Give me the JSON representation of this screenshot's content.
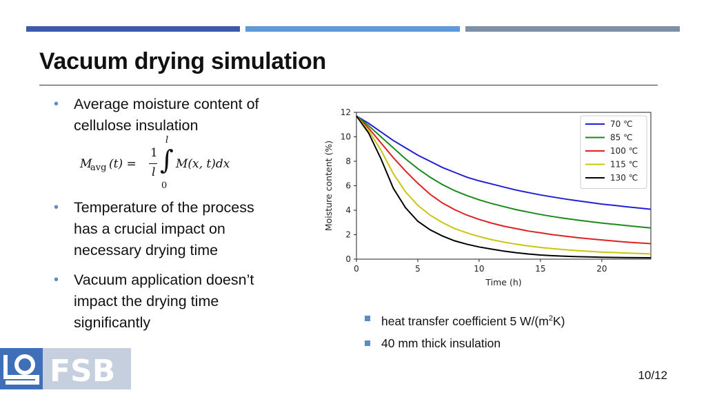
{
  "slide": {
    "title": "Vacuum drying simulation",
    "page_number": "10/12",
    "header_colors": [
      "#3d5aa8",
      "#5b9bd5",
      "#7f8fa6"
    ]
  },
  "bullets": [
    {
      "lines": [
        "Average moisture content of",
        "cellulose insulation"
      ]
    },
    {
      "lines": [
        "Temperature of the process",
        "has a crucial impact on",
        "necessary drying time"
      ]
    },
    {
      "lines": [
        "Vacuum application doesn’t",
        "impact the drying time",
        "significantly"
      ]
    }
  ],
  "formula": {
    "lhs": "M",
    "lhs_sub": "avg",
    "lhs_arg": "(t) =",
    "frac_num": "1",
    "frac_den": "l",
    "int_upper": "l",
    "int_lower": "0",
    "integrand": "M(x, t)dx"
  },
  "notes": [
    {
      "text": "heat transfer coefficient 5 W/(m",
      "sup": "2",
      "tail": "K)"
    },
    {
      "text": "40 mm thick insulation",
      "sup": "",
      "tail": ""
    }
  ],
  "logo": {
    "text": "FSB"
  },
  "chart_data": {
    "type": "line",
    "xlabel": "Time (h)",
    "ylabel": "Moisture content (%)",
    "xlim": [
      0,
      24
    ],
    "ylim": [
      0,
      12
    ],
    "xticks": [
      0,
      5,
      10,
      15,
      20
    ],
    "yticks": [
      0,
      2,
      4,
      6,
      8,
      10,
      12
    ],
    "legend_position": "top-right",
    "grid": false,
    "series": [
      {
        "name": "70 ℃",
        "color": "#1f1fd6",
        "x": [
          0,
          1,
          2,
          3,
          4,
          5,
          6,
          7,
          8,
          9,
          10,
          11,
          12,
          13,
          14,
          15,
          16,
          17,
          18,
          19,
          20,
          21,
          22,
          23,
          24
        ],
        "y": [
          11.7,
          11.1,
          10.4,
          9.7,
          9.1,
          8.5,
          8.0,
          7.5,
          7.1,
          6.7,
          6.4,
          6.15,
          5.9,
          5.65,
          5.45,
          5.25,
          5.08,
          4.92,
          4.78,
          4.64,
          4.5,
          4.4,
          4.28,
          4.18,
          4.08
        ]
      },
      {
        "name": "85 ℃",
        "color": "#1a8a1a",
        "x": [
          0,
          1,
          2,
          3,
          4,
          5,
          6,
          7,
          8,
          9,
          10,
          11,
          12,
          13,
          14,
          15,
          16,
          17,
          18,
          19,
          20,
          21,
          22,
          23,
          24
        ],
        "y": [
          11.7,
          10.9,
          10.0,
          9.1,
          8.2,
          7.4,
          6.7,
          6.1,
          5.6,
          5.2,
          4.85,
          4.55,
          4.3,
          4.05,
          3.85,
          3.65,
          3.48,
          3.33,
          3.2,
          3.07,
          2.95,
          2.85,
          2.75,
          2.65,
          2.55
        ]
      },
      {
        "name": "100 ℃",
        "color": "#e02020",
        "x": [
          0,
          1,
          2,
          3,
          4,
          5,
          6,
          7,
          8,
          9,
          10,
          11,
          12,
          13,
          14,
          15,
          16,
          17,
          18,
          19,
          20,
          21,
          22,
          23,
          24
        ],
        "y": [
          11.7,
          10.7,
          9.5,
          8.3,
          7.2,
          6.2,
          5.3,
          4.6,
          4.05,
          3.6,
          3.25,
          2.95,
          2.7,
          2.5,
          2.3,
          2.15,
          2.0,
          1.88,
          1.76,
          1.66,
          1.57,
          1.48,
          1.4,
          1.33,
          1.27
        ]
      },
      {
        "name": "115 ℃",
        "color": "#c8c410",
        "x": [
          0,
          1,
          2,
          3,
          4,
          5,
          6,
          7,
          8,
          9,
          10,
          11,
          12,
          13,
          14,
          15,
          16,
          17,
          18,
          19,
          20,
          21,
          22,
          23,
          24
        ],
        "y": [
          11.7,
          10.5,
          8.9,
          7.0,
          5.5,
          4.4,
          3.6,
          3.0,
          2.5,
          2.15,
          1.85,
          1.6,
          1.4,
          1.22,
          1.08,
          0.96,
          0.86,
          0.78,
          0.7,
          0.64,
          0.58,
          0.54,
          0.5,
          0.46,
          0.43
        ]
      },
      {
        "name": "130 ℃",
        "color": "#000000",
        "x": [
          0,
          1,
          2,
          3,
          4,
          5,
          6,
          7,
          8,
          9,
          10,
          11,
          12,
          13,
          14,
          15,
          16,
          17,
          18,
          19,
          20,
          21,
          22,
          23,
          24
        ],
        "y": [
          11.7,
          10.3,
          8.2,
          5.8,
          4.2,
          3.1,
          2.4,
          1.9,
          1.5,
          1.22,
          1.0,
          0.82,
          0.66,
          0.53,
          0.42,
          0.34,
          0.28,
          0.24,
          0.2,
          0.18,
          0.16,
          0.14,
          0.13,
          0.12,
          0.11
        ]
      }
    ]
  }
}
